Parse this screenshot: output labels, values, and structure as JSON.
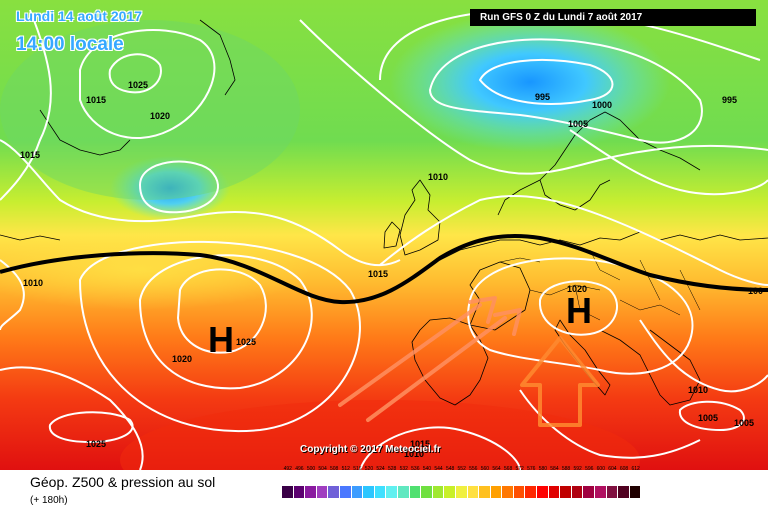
{
  "header": {
    "date": "Lundi 14 août 2017",
    "time": "14:00 locale",
    "run": "Run GFS 0 Z du Lundi 7 août 2017"
  },
  "copyright": "Copyright © 2017 Meteociel.fr",
  "legend": {
    "title": "Géop. Z500 & pression au sol",
    "subtitle": "(+ 180h)",
    "ticks": [
      "492",
      "496",
      "500",
      "504",
      "508",
      "512",
      "516",
      "520",
      "524",
      "528",
      "532",
      "536",
      "540",
      "544",
      "548",
      "552",
      "556",
      "560",
      "564",
      "568",
      "572",
      "576",
      "580",
      "584",
      "588",
      "592",
      "596",
      "600",
      "604",
      "608",
      "612"
    ],
    "colors": [
      "#3a0047",
      "#5c0070",
      "#8a1aa0",
      "#a03ec0",
      "#7060d8",
      "#4a78ff",
      "#3c9cff",
      "#2cc6ff",
      "#3ee0ff",
      "#60f0f0",
      "#60e8c0",
      "#50e070",
      "#70e040",
      "#a0e830",
      "#c8f028",
      "#f0f040",
      "#ffe040",
      "#ffc020",
      "#ffa000",
      "#ff7800",
      "#ff5000",
      "#ff2800",
      "#ff0000",
      "#e00000",
      "#c00000",
      "#b00010",
      "#a00040",
      "#b01060",
      "#801040",
      "#500020",
      "#200000"
    ]
  },
  "pressure_labels": [
    "995",
    "1000",
    "1005",
    "995",
    "1025",
    "1015",
    "1020",
    "1015",
    "1010",
    "1015",
    "1010",
    "1025",
    "1020",
    "1020",
    "1010",
    "1005",
    "1005",
    "1025",
    "1015",
    "1010",
    "100"
  ],
  "highs": [
    "H",
    "H"
  ],
  "map_colors": {
    "green": "#7de24a",
    "cyan": "#4ad6f0",
    "yellow": "#ffe850",
    "orange": "#ffa020",
    "red": "#f03010"
  }
}
